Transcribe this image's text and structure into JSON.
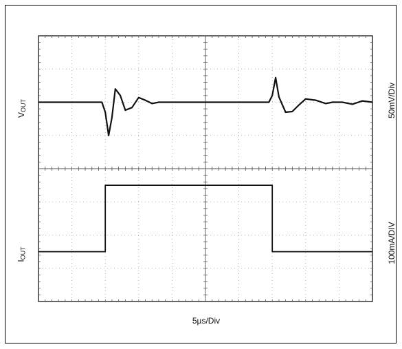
{
  "chart_data": {
    "type": "line",
    "title": "",
    "x_divisions": 10,
    "y_divisions": 8,
    "xlabel": "5µs/Div",
    "grid": true,
    "channels": [
      {
        "name_main": "V",
        "name_sub": "OUT",
        "scale": "50mV/Div",
        "baseline_div": 6,
        "units_per_div": 50,
        "unit": "mV",
        "x_div": [
          0,
          1.9,
          2.0,
          2.1,
          2.2,
          2.3,
          2.45,
          2.6,
          2.8,
          3.0,
          3.2,
          3.4,
          3.6,
          4.0,
          5.0,
          6.0,
          6.9,
          7.0,
          7.1,
          7.2,
          7.4,
          7.6,
          7.8,
          8.0,
          8.3,
          8.6,
          8.8,
          9.1,
          9.4,
          9.7,
          10
        ],
        "values": [
          0,
          0,
          -15,
          -50,
          -23,
          20,
          10,
          -12,
          -8,
          7,
          3,
          -2,
          0,
          0,
          0,
          0,
          0,
          10,
          37,
          8,
          -15,
          -14,
          -4,
          5,
          3,
          -2,
          0,
          0,
          -3,
          2,
          0
        ]
      },
      {
        "name_main": "I",
        "name_sub": "OUT",
        "scale": "100mA/DIV",
        "baseline_div": 1.5,
        "units_per_div": 100,
        "unit": "mA",
        "x_div": [
          0,
          2.0,
          2.0,
          7.0,
          7.0,
          10
        ],
        "values": [
          0,
          0,
          200,
          200,
          0,
          0
        ]
      }
    ]
  }
}
